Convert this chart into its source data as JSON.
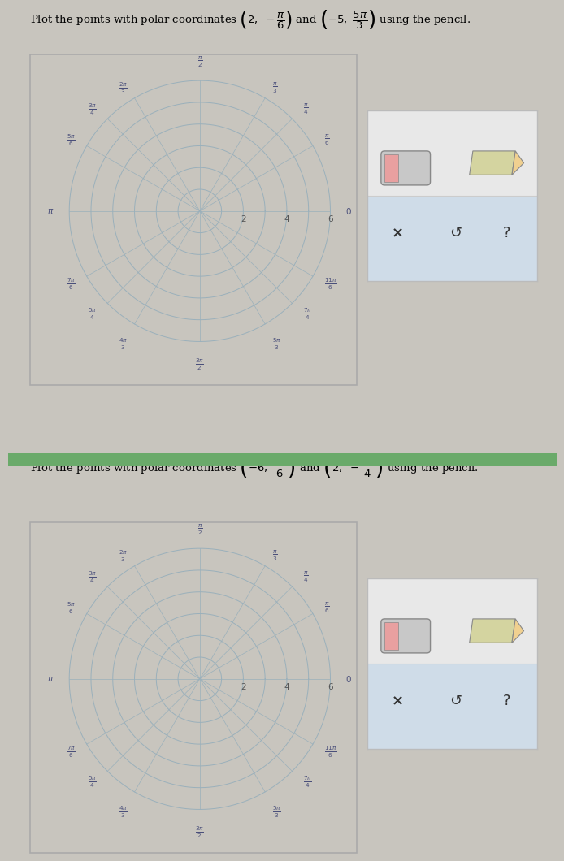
{
  "title1": "Plot the points with polar coordinates $\\left(2, -\\dfrac{\\pi}{6}\\right)$ and $\\left(-5, \\dfrac{5\\pi}{3}\\right)$ using the pencil.",
  "title2": "Plot the points with polar coordinates $\\left(-6, \\dfrac{7\\pi}{6}\\right)$ and $\\left(2, -\\dfrac{3\\pi}{4}\\right)$ using the pencil.",
  "r_circles": [
    1,
    2,
    3,
    4,
    5,
    6
  ],
  "r_labels": [
    2,
    4,
    6
  ],
  "angle_lines_deg": [
    0,
    30,
    45,
    60,
    90,
    120,
    135,
    150,
    180,
    210,
    225,
    240,
    270,
    300,
    315,
    330
  ],
  "fig_bg": "#c8c5be",
  "panel_bg": "#f0ede6",
  "grid_bg": "#eae7e0",
  "grid_color": "#9ab0bb",
  "label_color": "#4a4f7a",
  "radial_label_color": "#555555",
  "toolbox_bg": "#e8e8e8",
  "toolbox_border": "#bbbbbb",
  "toolbox_highlight": "#c5d8e8",
  "divider_color": "#6aaa6a",
  "r_max": 6,
  "angle_labels": [
    [
      90,
      "$\\frac{\\pi}{2}$",
      "center",
      "bottom"
    ],
    [
      60,
      "$\\frac{\\pi}{3}$",
      "left",
      "center"
    ],
    [
      120,
      "$\\frac{2\\pi}{3}$",
      "right",
      "center"
    ],
    [
      45,
      "$\\frac{\\pi}{4}$",
      "left",
      "center"
    ],
    [
      135,
      "$\\frac{3\\pi}{4}$",
      "right",
      "center"
    ],
    [
      30,
      "$\\frac{\\pi}{6}$",
      "left",
      "center"
    ],
    [
      150,
      "$\\frac{5\\pi}{6}$",
      "right",
      "center"
    ],
    [
      180,
      "$\\pi$",
      "right",
      "center"
    ],
    [
      0,
      "$0$",
      "left",
      "center"
    ],
    [
      210,
      "$\\frac{7\\pi}{6}$",
      "right",
      "center"
    ],
    [
      330,
      "$\\frac{11\\pi}{6}$",
      "left",
      "center"
    ],
    [
      225,
      "$\\frac{5\\pi}{4}$",
      "right",
      "center"
    ],
    [
      315,
      "$\\frac{7\\pi}{4}$",
      "left",
      "center"
    ],
    [
      240,
      "$\\frac{4\\pi}{3}$",
      "right",
      "top"
    ],
    [
      300,
      "$\\frac{5\\pi}{3}$",
      "left",
      "top"
    ],
    [
      270,
      "$\\frac{3\\pi}{2}$",
      "center",
      "top"
    ]
  ]
}
